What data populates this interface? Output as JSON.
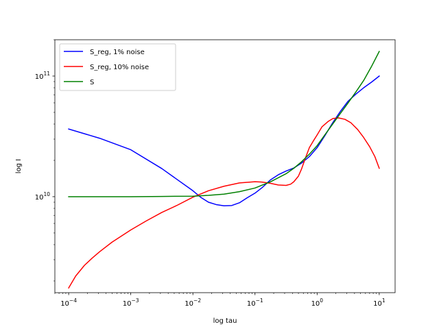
{
  "chart_data": {
    "type": "line",
    "title": "",
    "xlabel": "log tau",
    "ylabel": "log I",
    "xscale": "log",
    "yscale": "log",
    "xlim": [
      6e-05,
      18
    ],
    "ylim": [
      1600000000.0,
      200000000000.0
    ],
    "x_ticks": [
      {
        "value": 0.0001,
        "base": "10",
        "exp": "−4"
      },
      {
        "value": 0.001,
        "base": "10",
        "exp": "−3"
      },
      {
        "value": 0.01,
        "base": "10",
        "exp": "−2"
      },
      {
        "value": 0.1,
        "base": "10",
        "exp": "−1"
      },
      {
        "value": 1,
        "base": "10",
        "exp": "0"
      },
      {
        "value": 10,
        "base": "10",
        "exp": "1"
      }
    ],
    "y_ticks": [
      {
        "value": 10000000000.0,
        "base": "10",
        "exp": "10"
      },
      {
        "value": 100000000000.0,
        "base": "10",
        "exp": "11"
      }
    ],
    "legend_position": "top-left",
    "series": [
      {
        "name": "S_reg, 1% noise",
        "color": "#0000ff",
        "x": [
          0.0001,
          0.000316,
          0.001,
          0.00316,
          0.01,
          0.0133,
          0.0178,
          0.0237,
          0.0316,
          0.0422,
          0.0562,
          0.075,
          0.1,
          0.133,
          0.178,
          0.237,
          0.316,
          0.422,
          0.562,
          0.75,
          1,
          1.33,
          1.78,
          2.37,
          3.16,
          4.22,
          5.62,
          7.5,
          10
        ],
        "y": [
          36400000000.0,
          30500000000.0,
          24500000000.0,
          17100000000.0,
          11200000000.0,
          9900000000.0,
          9000000000.0,
          8600000000.0,
          8400000000.0,
          8450000000.0,
          8900000000.0,
          9800000000.0,
          10700000000.0,
          12000000000.0,
          13800000000.0,
          15200000000.0,
          16300000000.0,
          17300000000.0,
          19000000000.0,
          21500000000.0,
          25500000000.0,
          32000000000.0,
          41000000000.0,
          51000000000.0,
          62000000000.0,
          71000000000.0,
          80000000000.0,
          89000000000.0,
          100000000000.0
        ]
      },
      {
        "name": "S_reg, 10% noise",
        "color": "#ff0000",
        "x": [
          0.0001,
          0.00013,
          0.00018,
          0.00024,
          0.000316,
          0.0005,
          0.001,
          0.00178,
          0.00316,
          0.00562,
          0.01,
          0.0178,
          0.0316,
          0.0562,
          0.1,
          0.133,
          0.178,
          0.237,
          0.316,
          0.375,
          0.422,
          0.5,
          0.562,
          0.65,
          0.75,
          0.87,
          1,
          1.2,
          1.5,
          1.8,
          2.2,
          2.8,
          3.5,
          4.5,
          5.6,
          7,
          8.5,
          10
        ],
        "y": [
          1750000000.0,
          2200000000.0,
          2700000000.0,
          3100000000.0,
          3500000000.0,
          4200000000.0,
          5300000000.0,
          6300000000.0,
          7400000000.0,
          8500000000.0,
          9900000000.0,
          11200000000.0,
          12200000000.0,
          13000000000.0,
          13300000000.0,
          13200000000.0,
          12900000000.0,
          12500000000.0,
          12400000000.0,
          12700000000.0,
          13300000000.0,
          14800000000.0,
          17000000000.0,
          21000000000.0,
          25500000000.0,
          29000000000.0,
          32500000000.0,
          38000000000.0,
          42000000000.0,
          44500000000.0,
          45000000000.0,
          43800000000.0,
          41000000000.0,
          36000000000.0,
          31000000000.0,
          26000000000.0,
          21500000000.0,
          17200000000.0
        ]
      },
      {
        "name": "S",
        "color": "#008000",
        "x": [
          0.0001,
          0.000316,
          0.001,
          0.00316,
          0.01,
          0.0178,
          0.0316,
          0.0562,
          0.1,
          0.178,
          0.316,
          0.422,
          0.562,
          0.75,
          1,
          1.33,
          1.78,
          2.37,
          3.16,
          4.22,
          5.62,
          7.5,
          10
        ],
        "y": [
          10000000000.0,
          10000000000.0,
          10000000000.0,
          10050000000.0,
          10100000000.0,
          10250000000.0,
          10500000000.0,
          11000000000.0,
          11800000000.0,
          13300000000.0,
          15500000000.0,
          17200000000.0,
          19500000000.0,
          22500000000.0,
          26500000000.0,
          32500000000.0,
          40000000000.0,
          49000000000.0,
          60000000000.0,
          74000000000.0,
          92000000000.0,
          120000000000.0,
          160000000000.0
        ]
      }
    ]
  }
}
